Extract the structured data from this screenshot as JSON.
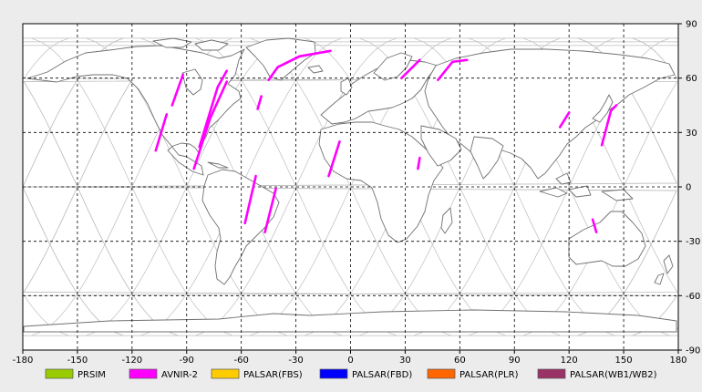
{
  "map": {
    "x_ticks": [
      "-180",
      "-150",
      "-120",
      "-90",
      "-60",
      "-30",
      "0",
      "30",
      "60",
      "90",
      "120",
      "150",
      "180"
    ],
    "y_ticks": [
      "90",
      "60",
      "30",
      "0",
      "-30",
      "-60",
      "-90"
    ],
    "lon_range": [
      -180,
      180
    ],
    "lat_range": [
      -90,
      90
    ],
    "grid": "dashed every 30 degrees"
  },
  "legend": [
    {
      "label": "PRSIM",
      "color": "#99cc00"
    },
    {
      "label": "AVNIR-2",
      "color": "#ff00ff"
    },
    {
      "label": "PALSAR(FBS)",
      "color": "#ffcc00"
    },
    {
      "label": "PALSAR(FBD)",
      "color": "#0000ff"
    },
    {
      "label": "PALSAR(PLR)",
      "color": "#ff6600"
    },
    {
      "label": "PALSAR(WB1/WB2)",
      "color": "#993366"
    }
  ],
  "colors": {
    "background": "#ececec",
    "plot_area": "#ffffff",
    "coastline": "#707070",
    "orbit_track": "#bdbdbd",
    "grid": "#000000"
  },
  "chart_data": {
    "type": "map",
    "x_axis": {
      "min": -180,
      "max": 180,
      "ticks": [
        -180,
        -150,
        -120,
        -90,
        -60,
        -30,
        0,
        30,
        60,
        90,
        120,
        150,
        180
      ]
    },
    "y_axis": {
      "min": -90,
      "max": 90,
      "ticks": [
        90,
        60,
        30,
        0,
        -30,
        -60,
        -90
      ]
    },
    "series": [
      {
        "name": "AVNIR-2",
        "color": "#ff00ff",
        "segments": [
          [
            [
              -107,
              20
            ],
            [
              -101,
              40
            ]
          ],
          [
            [
              -98,
              45
            ],
            [
              -92,
              62
            ]
          ],
          [
            [
              -83,
              22
            ],
            [
              -73,
              55
            ],
            [
              -68,
              64
            ]
          ],
          [
            [
              -86,
              10
            ],
            [
              -77,
              38
            ],
            [
              -68,
              58
            ]
          ],
          [
            [
              -58,
              -20
            ],
            [
              -52,
              6
            ]
          ],
          [
            [
              -47,
              -25
            ],
            [
              -41,
              -1
            ]
          ],
          [
            [
              -45,
              59
            ],
            [
              -40,
              66
            ],
            [
              -28,
              72
            ],
            [
              -11,
              75
            ]
          ],
          [
            [
              -51,
              43
            ],
            [
              -49,
              50
            ]
          ],
          [
            [
              -12,
              6
            ],
            [
              -6,
              25
            ]
          ],
          [
            [
              28,
              60
            ],
            [
              38,
              70
            ]
          ],
          [
            [
              37,
              10
            ],
            [
              38,
              16
            ]
          ],
          [
            [
              48,
              59
            ],
            [
              56,
              69
            ],
            [
              64,
              70
            ]
          ],
          [
            [
              115,
              33
            ],
            [
              120,
              41
            ]
          ],
          [
            [
              138,
              23
            ],
            [
              143,
              42
            ],
            [
              146,
              45
            ]
          ],
          [
            [
              133,
              -18
            ],
            [
              135,
              -25
            ]
          ]
        ]
      }
    ],
    "orbit_tracks": "repeating gray swath lines across the globe",
    "legend_placement": "bottom"
  }
}
